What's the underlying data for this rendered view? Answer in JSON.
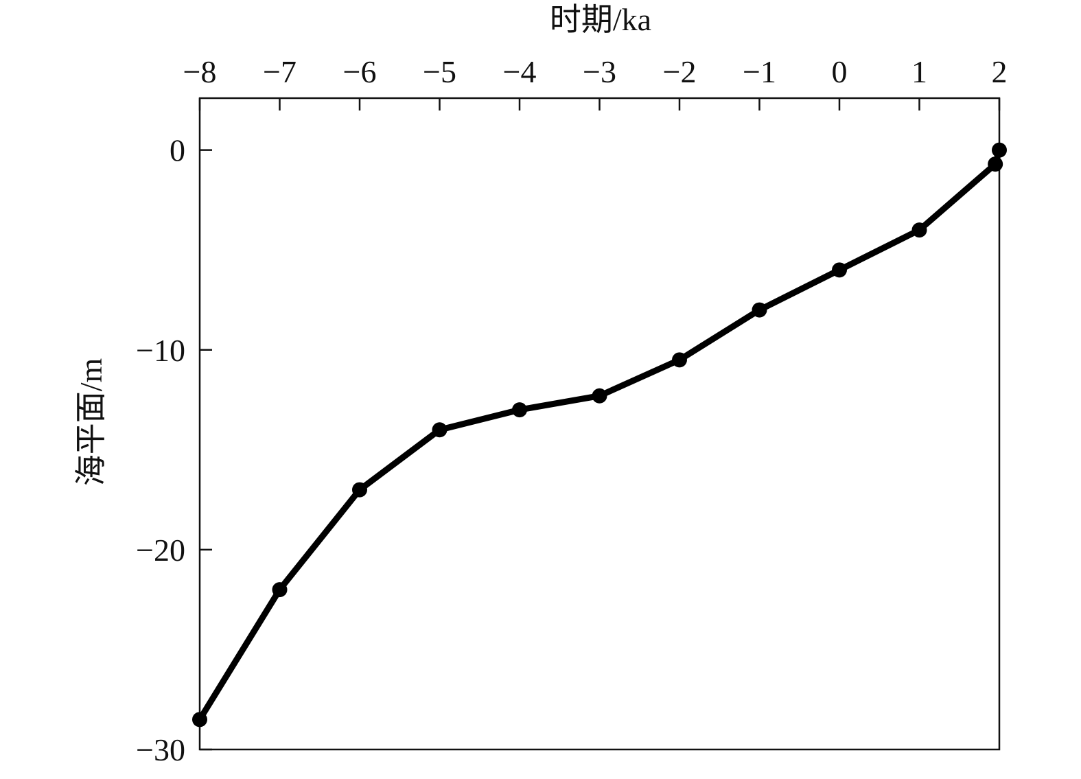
{
  "chart_data": {
    "type": "line",
    "title": "",
    "xlabel": "时期/ka",
    "ylabel": "海平面/m",
    "x_axis_position": "top",
    "xlim": [
      -8,
      2
    ],
    "ylim": [
      -30,
      2.6
    ],
    "xticks": [
      -8,
      -7,
      -6,
      -5,
      -4,
      -3,
      -2,
      -1,
      0,
      1,
      2
    ],
    "xtick_labels": [
      "−8",
      "−7",
      "−6",
      "−5",
      "−4",
      "−3",
      "−2",
      "−1",
      "0",
      "1",
      "2"
    ],
    "yticks": [
      0,
      -10,
      -20,
      -30
    ],
    "ytick_labels": [
      "0",
      "−10",
      "−20",
      "−30"
    ],
    "grid": false,
    "series": [
      {
        "color": "#000000",
        "marker": "circle",
        "x": [
          -8,
          -7,
          -6,
          -5,
          -4,
          -3,
          -2,
          -1,
          0,
          1,
          1.95,
          2
        ],
        "y": [
          -28.5,
          -22,
          -17,
          -14,
          -13,
          -12.3,
          -10.5,
          -8,
          -6,
          -4,
          -0.7,
          0
        ]
      }
    ]
  }
}
